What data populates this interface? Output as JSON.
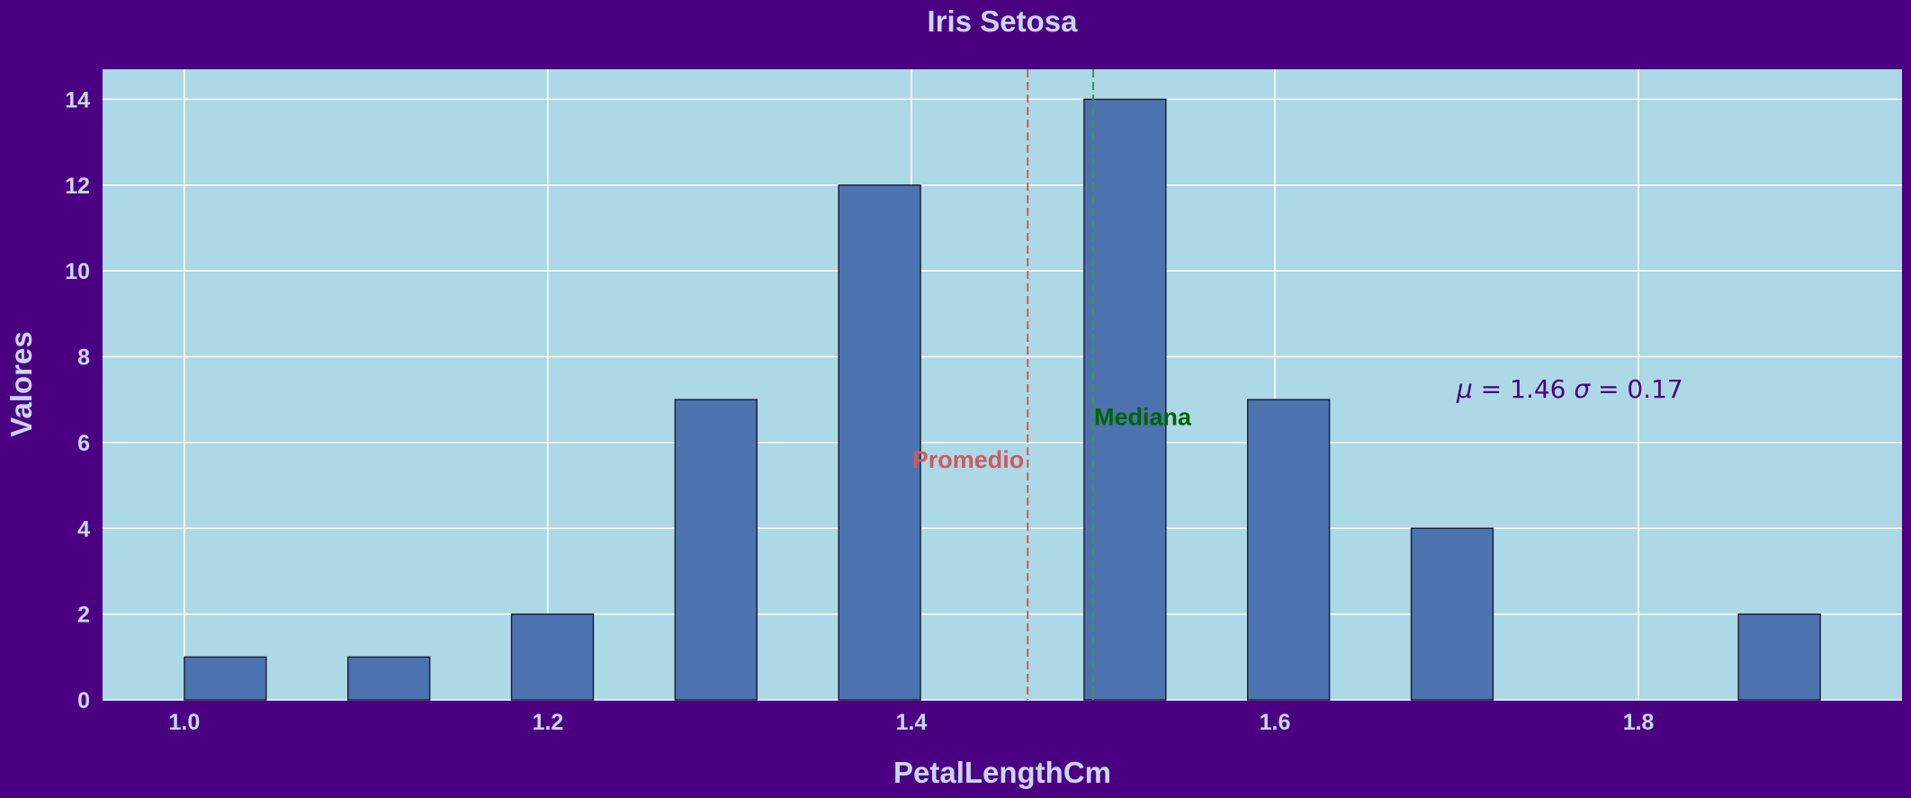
{
  "chart_data": {
    "type": "bar",
    "title": "Iris Setosa",
    "xlabel": "PetalLengthCm",
    "ylabel": "Valores",
    "bin_width": 0.045,
    "bins": [
      {
        "x": 1.0,
        "count": 1
      },
      {
        "x": 1.09,
        "count": 1
      },
      {
        "x": 1.18,
        "count": 2
      },
      {
        "x": 1.27,
        "count": 7
      },
      {
        "x": 1.36,
        "count": 12
      },
      {
        "x": 1.495,
        "count": 14
      },
      {
        "x": 1.585,
        "count": 7
      },
      {
        "x": 1.675,
        "count": 4
      },
      {
        "x": 1.855,
        "count": 2
      }
    ],
    "xlim": [
      0.955,
      1.945
    ],
    "ylim": [
      0,
      14.7
    ],
    "xticks": [
      {
        "value": 1.0,
        "label": "1.0"
      },
      {
        "value": 1.2,
        "label": "1.2"
      },
      {
        "value": 1.4,
        "label": "1.4"
      },
      {
        "value": 1.6,
        "label": "1.6"
      },
      {
        "value": 1.8,
        "label": "1.8"
      }
    ],
    "yticks": [
      {
        "value": 0,
        "label": "0"
      },
      {
        "value": 2,
        "label": "2"
      },
      {
        "value": 4,
        "label": "4"
      },
      {
        "value": 6,
        "label": "6"
      },
      {
        "value": 8,
        "label": "8"
      },
      {
        "value": 10,
        "label": "10"
      },
      {
        "value": 12,
        "label": "12"
      },
      {
        "value": 14,
        "label": "14"
      }
    ],
    "grid": true,
    "mean": {
      "value": 1.464,
      "label": "Promedio",
      "label_y": 5.6,
      "color": "#cd5c5c"
    },
    "median": {
      "value": 1.5,
      "label": "Mediana",
      "label_y": 6.6,
      "color": "#006400"
    },
    "stats_text": {
      "mu": "1.46",
      "sigma": "0.17",
      "x": 1.7,
      "y": 7.05
    },
    "colors": {
      "background": "#4b0082",
      "plot_area": "#add8e6",
      "bar_fill": "#4c72b0",
      "bar_edge": "#1a1a2e",
      "grid": "#ffffff",
      "text": "#c9d6f5",
      "stats_text": "#4b0082"
    }
  }
}
